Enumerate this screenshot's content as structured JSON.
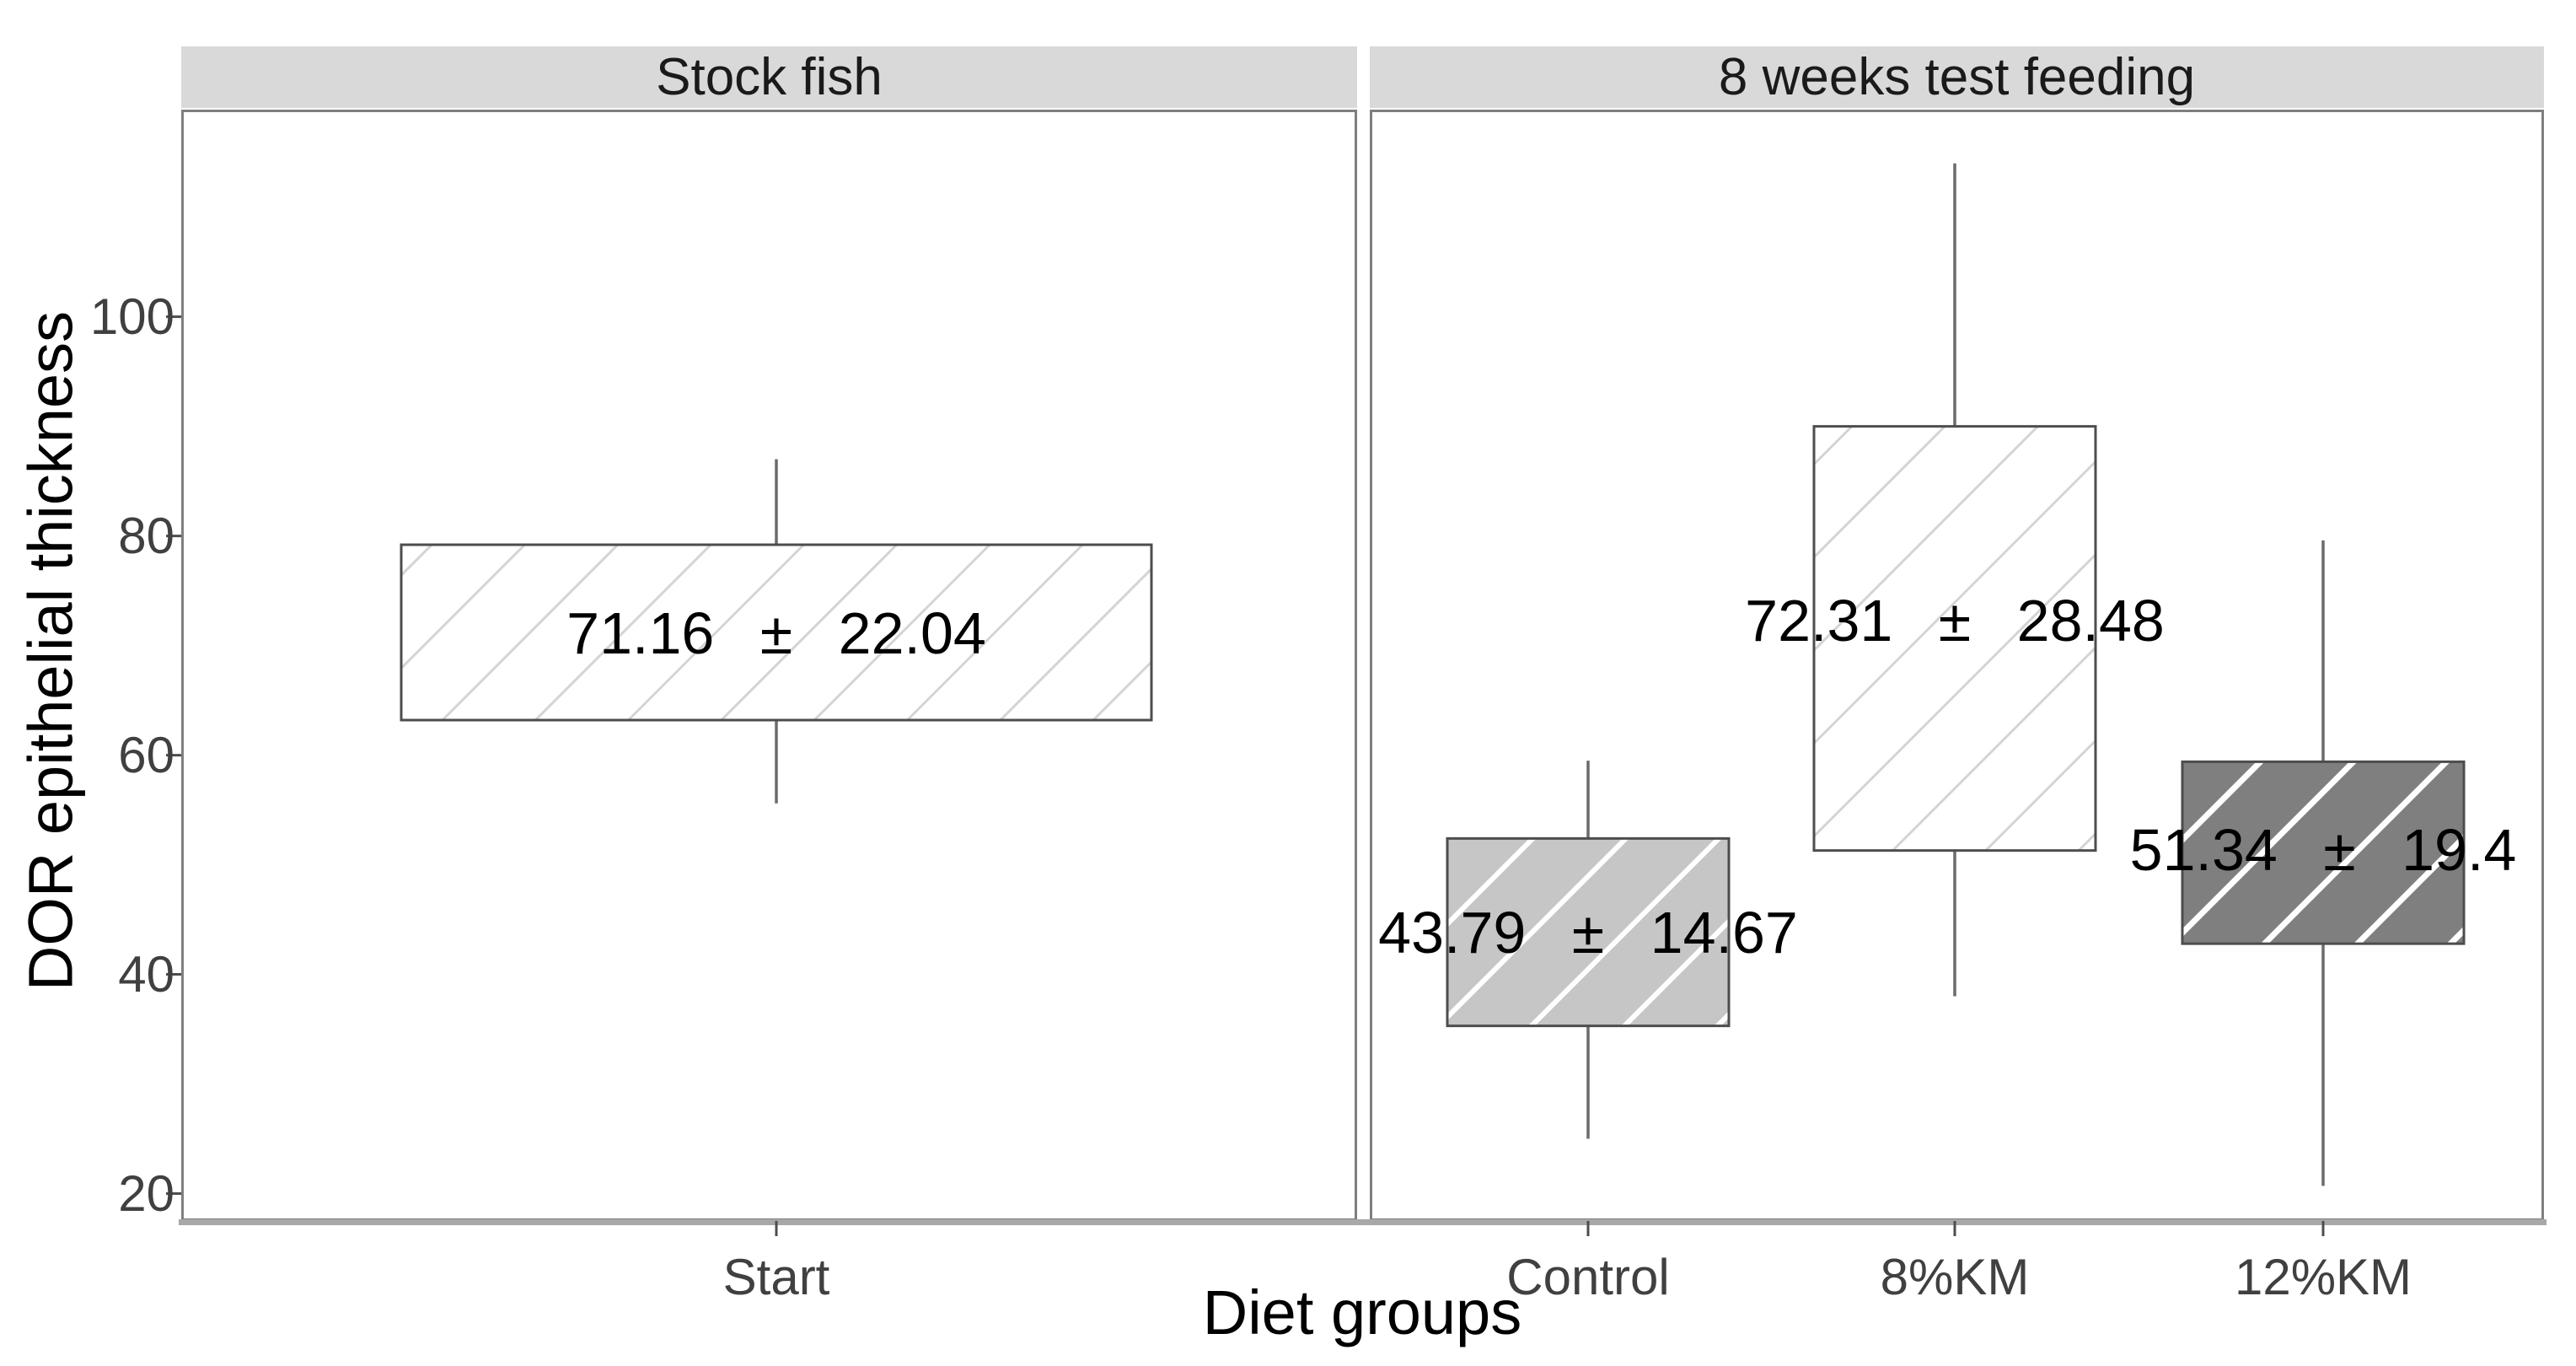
{
  "figure": {
    "background": "#ffffff"
  },
  "axes": {
    "x_title": "Diet groups",
    "y_title": "DOR epithelial thickness",
    "y_tick_labels": [
      "100",
      "80",
      "60",
      "40",
      "20"
    ],
    "y_tick_values": [
      100,
      80,
      60,
      40,
      20
    ],
    "x_tick_labels": [
      "Start",
      "Control",
      "8%KM",
      "12%KM"
    ]
  },
  "colors": {
    "strip_background": "#d9d9d9",
    "panel_border": "#7f7f7f",
    "axis_line": "#a8a8a8",
    "box_border": "#4d4d4d",
    "whisker": "#6b6b6b",
    "tick_mark": "#4d4d4d",
    "tick_label": "#404040",
    "light_gray_fill": "#c6c6c6",
    "dark_gray_fill": "#7f7f7f",
    "light_hatch": "#d4d4d4",
    "white_hatch": "#ffffff"
  },
  "chart_data": {
    "type": "boxplot",
    "title": "",
    "xlabel": "Diet groups",
    "ylabel": "DOR epithelial thickness",
    "ylim": [
      17.5,
      118.9
    ],
    "y_ticks": [
      20,
      40,
      60,
      80,
      100
    ],
    "grid": false,
    "legend": "none",
    "facets": [
      {
        "title": "Stock fish",
        "boxes": [
          {
            "category": "Start",
            "mean": 71.16,
            "sd": 22.04,
            "label": "71.16 ± 22.04",
            "q1": 63.2,
            "q3": 79.2,
            "whisker_low": 55.6,
            "whisker_high": 87.0,
            "style": {
              "fill": "#ffffff",
              "hatch_color": "#d4d4d4",
              "hatch_width": 3,
              "hatch_angle": -45,
              "hatch_spacing": 78
            }
          }
        ]
      },
      {
        "title": "8 weeks test feeding",
        "boxes": [
          {
            "category": "Control",
            "mean": 43.79,
            "sd": 14.67,
            "label": "43.79 ± 14.67",
            "q1": 35.3,
            "q3": 52.4,
            "whisker_low": 25.0,
            "whisker_high": 59.5,
            "style": {
              "fill": "#c6c6c6",
              "hatch_color": "#ffffff",
              "hatch_width": 6,
              "hatch_angle": -45,
              "hatch_spacing": 78
            }
          },
          {
            "category": "8%KM",
            "mean": 72.31,
            "sd": 28.48,
            "label": "72.31 ± 28.48",
            "q1": 51.3,
            "q3": 90.0,
            "whisker_low": 38.0,
            "whisker_high": 114.0,
            "style": {
              "fill": "#ffffff",
              "hatch_color": "#d4d4d4",
              "hatch_width": 3,
              "hatch_angle": -45,
              "hatch_spacing": 78
            }
          },
          {
            "category": "12%KM",
            "mean": 51.34,
            "sd": 19.4,
            "label": "51.34 ± 19.4",
            "q1": 42.8,
            "q3": 59.4,
            "whisker_low": 20.7,
            "whisker_high": 79.6,
            "style": {
              "fill": "#7f7f7f",
              "hatch_color": "#ffffff",
              "hatch_width": 7,
              "hatch_angle": -45,
              "hatch_spacing": 78
            }
          }
        ]
      }
    ]
  }
}
